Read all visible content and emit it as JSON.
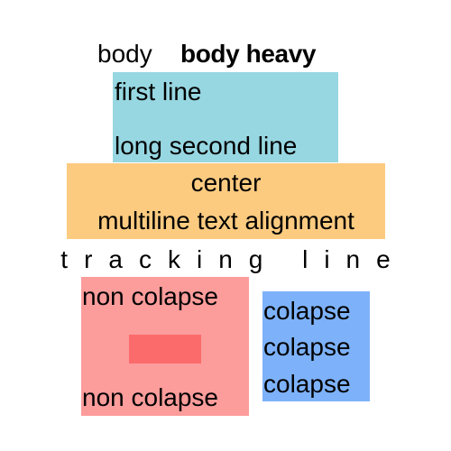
{
  "colors": {
    "blue": "#97d7e2",
    "orange": "#fccb80",
    "red": "#fc9c9b",
    "red_inner": "#fc6b6b",
    "blue2": "#7db2fa"
  },
  "top_row": {
    "regular": "body",
    "heavy": "body heavy"
  },
  "blue_box": {
    "lines": [
      "first line",
      "long second line"
    ]
  },
  "orange_box": {
    "lines": [
      "center",
      "multiline text alignment"
    ]
  },
  "tracking": {
    "text": "tracking line"
  },
  "red_box": {
    "lines": [
      "non colapse",
      "non colapse"
    ]
  },
  "blue2_box": {
    "lines": [
      "colapse",
      "colapse",
      "colapse"
    ]
  }
}
